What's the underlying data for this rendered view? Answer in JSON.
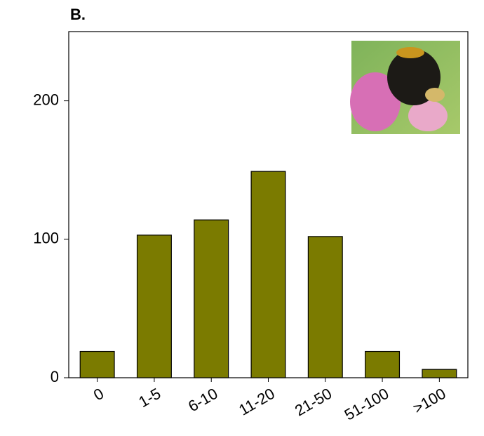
{
  "chart_data": {
    "type": "bar",
    "title": "B.",
    "categories": [
      "0",
      "1-5",
      "6-10",
      "11-20",
      "21-50",
      "51-100",
      ">100"
    ],
    "values": [
      19,
      103,
      114,
      149,
      102,
      19,
      6
    ],
    "color": "#7b7b00",
    "ylim": [
      0,
      250
    ],
    "yticks": [
      0,
      100,
      200
    ],
    "grid": false
  }
}
